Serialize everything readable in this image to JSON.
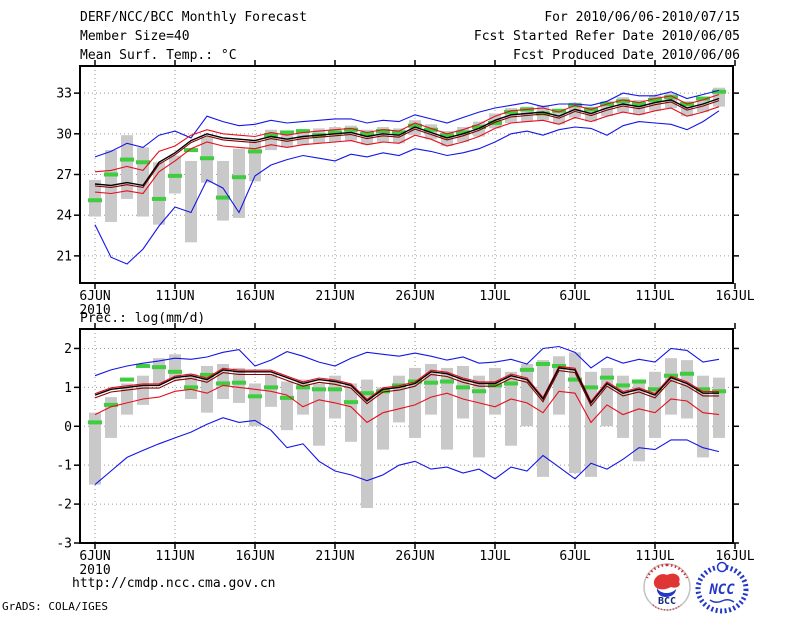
{
  "header": {
    "title": "DERF/NCC/BCC Monthly Forecast",
    "for_range": "For 2010/06/06-2010/07/15",
    "member_size": "Member Size=40",
    "refer_date": "Fcst Started Refer Date 2010/06/05",
    "var_label": "Mean Surf. Temp.: °C",
    "produced_date": "Fcst Produced Date 2010/06/06"
  },
  "footer": {
    "url": "http://cmdp.ncc.cma.gov.cn",
    "grads_credit": "GrADS: COLA/IGES",
    "logo_bcc": "BCC",
    "logo_ncc": "NCC"
  },
  "colors": {
    "blue_envelope": "#1515e8",
    "red_quartile": "#e60f1e",
    "mean_black": "#000000",
    "control_maroon": "#8b0000",
    "obs_green": "#3fcc3f",
    "spread_gray": "#c9c9c9",
    "grid_gray": "#9a9a9a"
  },
  "chart_data": [
    {
      "type": "line",
      "title": "Mean Surf. Temp.: °C",
      "x_tick_labels": [
        "6JUN",
        "11JUN",
        "16JUN",
        "21JUN",
        "26JUN",
        "1JUL",
        "6JUL",
        "11JUL",
        "16JUL"
      ],
      "x_year_label": "2010",
      "ylim": [
        19,
        35
      ],
      "yticks": [
        21,
        24,
        27,
        30,
        33
      ],
      "n_points": 40,
      "series": [
        {
          "name": "observation",
          "style": "dash",
          "color": "#3fcc3f",
          "values": [
            25.1,
            27.0,
            28.1,
            27.9,
            25.2,
            26.9,
            28.8,
            28.2,
            25.3,
            26.8,
            28.7,
            29.9,
            30.1,
            30.2,
            29.9,
            30.1,
            30.3,
            30.0,
            30.2,
            30.1,
            30.6,
            30.3,
            29.9,
            30.1,
            30.5,
            30.8,
            31.6,
            31.8,
            31.5,
            31.7,
            32.1,
            31.8,
            32.2,
            32.4,
            32.2,
            32.5,
            32.7,
            32.2,
            32.6,
            33.1
          ]
        },
        {
          "name": "ensemble-max",
          "style": "line",
          "color": "#1515e8",
          "values": [
            28.3,
            28.7,
            29.3,
            29.0,
            29.9,
            30.2,
            29.7,
            31.3,
            30.9,
            30.6,
            30.7,
            31.0,
            30.8,
            30.9,
            31.0,
            31.1,
            31.1,
            30.8,
            31.0,
            30.9,
            31.4,
            31.1,
            30.8,
            31.2,
            31.6,
            31.9,
            32.1,
            32.3,
            32.0,
            32.2,
            32.2,
            32.1,
            32.4,
            33.0,
            32.8,
            32.8,
            33.1,
            32.6,
            32.9,
            33.2
          ]
        },
        {
          "name": "ensemble-min",
          "style": "line",
          "color": "#1515e8",
          "values": [
            23.3,
            20.9,
            20.4,
            21.5,
            23.2,
            24.6,
            24.2,
            26.6,
            26.0,
            24.2,
            26.9,
            27.7,
            28.1,
            28.4,
            28.2,
            28.0,
            28.5,
            28.3,
            28.6,
            28.4,
            28.9,
            28.7,
            28.4,
            28.6,
            28.9,
            29.4,
            30.0,
            30.2,
            29.9,
            30.3,
            30.5,
            30.4,
            29.9,
            30.6,
            30.9,
            30.8,
            30.7,
            30.3,
            30.9,
            31.7
          ]
        },
        {
          "name": "upper-quartile",
          "style": "line",
          "color": "#e60f1e",
          "values": [
            27.2,
            27.3,
            27.6,
            27.3,
            28.7,
            29.1,
            29.9,
            30.3,
            30.0,
            29.9,
            29.8,
            30.1,
            29.9,
            30.1,
            30.2,
            30.3,
            30.4,
            30.1,
            30.3,
            30.2,
            30.8,
            30.4,
            30.0,
            30.3,
            30.7,
            31.3,
            31.7,
            31.8,
            31.9,
            31.6,
            32.1,
            31.8,
            32.2,
            32.5,
            32.3,
            32.6,
            32.8,
            32.2,
            32.5,
            32.9
          ]
        },
        {
          "name": "lower-quartile",
          "style": "line",
          "color": "#e60f1e",
          "values": [
            25.7,
            25.6,
            25.8,
            25.6,
            27.2,
            28.0,
            28.9,
            29.4,
            29.1,
            29.0,
            28.9,
            29.2,
            29.0,
            29.2,
            29.3,
            29.4,
            29.5,
            29.2,
            29.4,
            29.3,
            29.9,
            29.6,
            29.1,
            29.4,
            29.8,
            30.4,
            30.8,
            30.9,
            31.0,
            30.7,
            31.2,
            30.9,
            31.3,
            31.6,
            31.4,
            31.7,
            31.9,
            31.3,
            31.6,
            32.0
          ]
        },
        {
          "name": "control-run",
          "style": "line",
          "color": "#8b0000",
          "values": [
            26.15,
            26.05,
            26.25,
            26.05,
            27.75,
            28.45,
            29.35,
            29.85,
            29.55,
            29.45,
            29.35,
            29.65,
            29.45,
            29.65,
            29.75,
            29.85,
            29.95,
            29.65,
            29.85,
            29.75,
            30.35,
            29.95,
            29.55,
            29.85,
            30.25,
            30.85,
            31.25,
            31.35,
            31.45,
            31.15,
            31.65,
            31.35,
            31.75,
            32.05,
            31.85,
            32.15,
            32.35,
            31.75,
            32.05,
            32.45
          ]
        },
        {
          "name": "ensemble-mean",
          "style": "line",
          "color": "#000000",
          "values": [
            26.3,
            26.2,
            26.4,
            26.2,
            27.9,
            28.6,
            29.5,
            30.0,
            29.7,
            29.6,
            29.5,
            29.8,
            29.6,
            29.8,
            29.9,
            30.0,
            30.1,
            29.8,
            30.0,
            29.9,
            30.5,
            30.1,
            29.7,
            30.0,
            30.4,
            31.0,
            31.4,
            31.5,
            31.6,
            31.3,
            31.8,
            31.5,
            31.9,
            32.2,
            32.0,
            32.3,
            32.5,
            31.9,
            32.2,
            32.6
          ]
        }
      ],
      "bars": {
        "name": "ensemble-spread",
        "color": "#c9c9c9",
        "ranges": [
          [
            23.9,
            26.6
          ],
          [
            23.5,
            28.8
          ],
          [
            25.2,
            29.9
          ],
          [
            23.9,
            29.0
          ],
          [
            23.3,
            27.9
          ],
          [
            25.6,
            28.4
          ],
          [
            22.0,
            28.0
          ],
          [
            26.4,
            29.8
          ],
          [
            23.6,
            28.0
          ],
          [
            23.8,
            28.9
          ],
          [
            26.5,
            29.5
          ],
          [
            28.8,
            30.3
          ],
          [
            29.0,
            30.1
          ],
          [
            29.2,
            30.3
          ],
          [
            29.3,
            30.4
          ],
          [
            29.4,
            30.5
          ],
          [
            29.5,
            30.6
          ],
          [
            29.2,
            30.3
          ],
          [
            29.4,
            30.5
          ],
          [
            29.3,
            30.4
          ],
          [
            29.9,
            31.0
          ],
          [
            29.6,
            30.7
          ],
          [
            29.1,
            30.2
          ],
          [
            29.4,
            30.5
          ],
          [
            29.8,
            30.9
          ],
          [
            30.4,
            31.5
          ],
          [
            30.8,
            31.9
          ],
          [
            30.9,
            32.0
          ],
          [
            31.0,
            32.1
          ],
          [
            30.7,
            31.8
          ],
          [
            31.2,
            32.3
          ],
          [
            30.9,
            32.0
          ],
          [
            31.3,
            32.4
          ],
          [
            31.6,
            32.7
          ],
          [
            31.4,
            32.5
          ],
          [
            31.7,
            32.8
          ],
          [
            31.9,
            33.0
          ],
          [
            31.3,
            32.4
          ],
          [
            31.6,
            32.7
          ],
          [
            32.0,
            33.4
          ]
        ]
      }
    },
    {
      "type": "line",
      "title": "Prec.: log(mm/d)",
      "x_tick_labels": [
        "6JUN",
        "11JUN",
        "16JUN",
        "21JUN",
        "26JUN",
        "1JUL",
        "6JUL",
        "11JUL",
        "16JUL"
      ],
      "x_year_label": "2010",
      "ylim": [
        -3,
        2.5
      ],
      "yticks": [
        -3,
        -2,
        -1,
        0,
        1,
        2
      ],
      "n_points": 40,
      "series": [
        {
          "name": "observation",
          "style": "dash",
          "color": "#3fcc3f",
          "values": [
            0.1,
            0.55,
            1.2,
            1.55,
            1.52,
            1.4,
            1.0,
            1.32,
            1.1,
            1.12,
            0.77,
            1.0,
            0.73,
            1.0,
            0.95,
            0.95,
            0.62,
            0.85,
            0.9,
            1.05,
            1.15,
            1.12,
            1.15,
            1.0,
            0.9,
            1.05,
            1.1,
            1.45,
            1.6,
            1.55,
            1.2,
            1.0,
            1.25,
            1.05,
            1.15,
            0.95,
            1.3,
            1.35,
            0.95,
            0.9
          ]
        },
        {
          "name": "ensemble-max",
          "style": "line",
          "color": "#1515e8",
          "values": [
            1.3,
            1.45,
            1.55,
            1.62,
            1.68,
            1.75,
            1.72,
            1.78,
            1.9,
            1.97,
            1.55,
            1.7,
            1.92,
            1.8,
            1.65,
            1.55,
            1.75,
            1.9,
            1.85,
            1.8,
            1.88,
            1.8,
            1.7,
            1.78,
            1.62,
            1.65,
            1.72,
            1.6,
            2.0,
            2.05,
            1.9,
            1.5,
            1.78,
            1.62,
            1.72,
            1.65,
            2.0,
            1.95,
            1.65,
            1.72
          ]
        },
        {
          "name": "ensemble-min",
          "style": "line",
          "color": "#1515e8",
          "values": [
            -1.5,
            -1.15,
            -0.8,
            -0.62,
            -0.45,
            -0.3,
            -0.15,
            0.05,
            0.22,
            0.1,
            0.15,
            -0.1,
            -0.55,
            -0.45,
            -0.9,
            -1.15,
            -1.25,
            -1.4,
            -1.25,
            -1.0,
            -0.9,
            -1.1,
            -1.05,
            -1.2,
            -1.1,
            -1.35,
            -1.05,
            -1.15,
            -0.75,
            -1.05,
            -1.35,
            -0.95,
            -1.1,
            -0.85,
            -0.55,
            -0.6,
            -0.35,
            -0.35,
            -0.55,
            -0.65
          ]
        },
        {
          "name": "upper-quartile",
          "style": "line",
          "color": "#e60f1e",
          "values": [
            0.84,
            0.99,
            1.04,
            1.09,
            1.09,
            1.29,
            1.34,
            1.24,
            1.49,
            1.44,
            1.44,
            1.44,
            1.29,
            1.14,
            1.24,
            1.19,
            1.09,
            0.69,
            0.99,
            1.04,
            1.14,
            1.44,
            1.39,
            1.24,
            1.14,
            1.14,
            1.34,
            1.24,
            0.74,
            1.54,
            1.49,
            0.64,
            1.14,
            0.89,
            0.99,
            0.84,
            1.29,
            1.14,
            0.89,
            0.89
          ]
        },
        {
          "name": "lower-quartile",
          "style": "line",
          "color": "#e60f1e",
          "values": [
            0.3,
            0.5,
            0.6,
            0.7,
            0.75,
            0.9,
            0.95,
            0.85,
            1.05,
            1.0,
            0.95,
            0.9,
            0.8,
            0.5,
            0.68,
            0.6,
            0.5,
            0.1,
            0.35,
            0.45,
            0.55,
            0.75,
            0.85,
            0.7,
            0.6,
            0.5,
            0.7,
            0.6,
            0.35,
            0.9,
            0.85,
            0.1,
            0.55,
            0.3,
            0.45,
            0.35,
            0.7,
            0.65,
            0.35,
            0.3
          ]
        },
        {
          "name": "control-run",
          "style": "line",
          "color": "#8b0000",
          "values": [
            0.73,
            0.88,
            0.93,
            0.98,
            0.98,
            1.18,
            1.23,
            1.13,
            1.38,
            1.33,
            1.33,
            1.33,
            1.18,
            1.03,
            1.13,
            1.08,
            0.98,
            0.58,
            0.88,
            0.93,
            1.03,
            1.33,
            1.28,
            1.13,
            1.03,
            1.03,
            1.23,
            1.13,
            0.63,
            1.43,
            1.38,
            0.53,
            1.03,
            0.78,
            0.88,
            0.73,
            1.18,
            1.03,
            0.78,
            0.78
          ]
        },
        {
          "name": "ensemble-mean",
          "style": "line",
          "color": "#000000",
          "values": [
            0.8,
            0.95,
            1.0,
            1.05,
            1.05,
            1.25,
            1.3,
            1.2,
            1.45,
            1.4,
            1.4,
            1.4,
            1.25,
            1.1,
            1.2,
            1.15,
            1.05,
            0.65,
            0.95,
            1.0,
            1.1,
            1.4,
            1.35,
            1.2,
            1.1,
            1.1,
            1.3,
            1.2,
            0.7,
            1.5,
            1.45,
            0.6,
            1.1,
            0.85,
            0.95,
            0.8,
            1.25,
            1.1,
            0.85,
            0.85
          ]
        }
      ],
      "bars": {
        "name": "ensemble-spread",
        "color": "#c9c9c9",
        "ranges": [
          [
            -1.5,
            0.35
          ],
          [
            -0.3,
            0.75
          ],
          [
            0.3,
            1.1
          ],
          [
            0.55,
            1.3
          ],
          [
            1.1,
            1.75
          ],
          [
            1.2,
            1.85
          ],
          [
            0.7,
            1.35
          ],
          [
            0.35,
            1.55
          ],
          [
            0.7,
            1.6
          ],
          [
            0.6,
            1.5
          ],
          [
            0.0,
            1.1
          ],
          [
            0.5,
            1.35
          ],
          [
            -0.1,
            1.15
          ],
          [
            0.3,
            1.2
          ],
          [
            -0.5,
            1.1
          ],
          [
            0.2,
            1.3
          ],
          [
            -0.4,
            1.1
          ],
          [
            -2.1,
            1.2
          ],
          [
            -0.6,
            1.0
          ],
          [
            0.1,
            1.3
          ],
          [
            -0.3,
            1.5
          ],
          [
            0.3,
            1.6
          ],
          [
            -0.6,
            1.5
          ],
          [
            0.2,
            1.55
          ],
          [
            -0.8,
            1.3
          ],
          [
            0.3,
            1.5
          ],
          [
            -0.5,
            1.4
          ],
          [
            0.0,
            1.6
          ],
          [
            -1.3,
            1.7
          ],
          [
            0.3,
            1.8
          ],
          [
            -1.2,
            1.9
          ],
          [
            -1.3,
            1.4
          ],
          [
            0.0,
            1.5
          ],
          [
            -0.3,
            1.3
          ],
          [
            -0.9,
            1.2
          ],
          [
            -0.3,
            1.4
          ],
          [
            0.3,
            1.75
          ],
          [
            0.2,
            1.7
          ],
          [
            -0.8,
            1.3
          ],
          [
            -0.3,
            1.25
          ]
        ]
      }
    }
  ]
}
